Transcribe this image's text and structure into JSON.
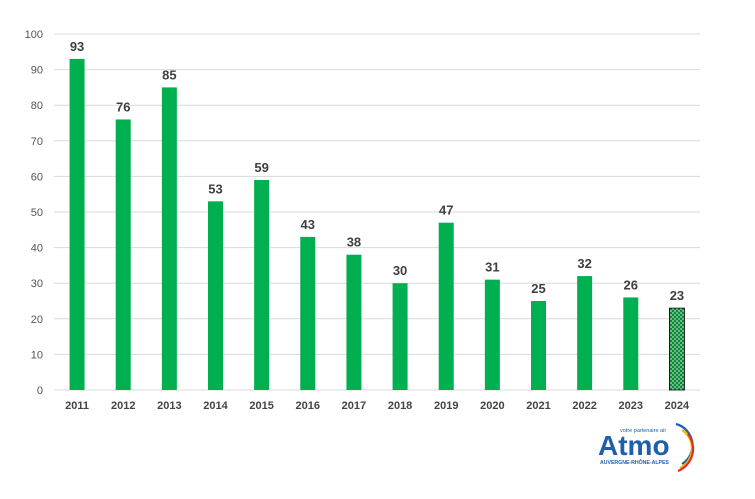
{
  "chart_data": {
    "type": "bar",
    "title": "",
    "xlabel": "",
    "ylabel": "",
    "ylim": [
      0,
      100
    ],
    "yticks": [
      0,
      10,
      20,
      30,
      40,
      50,
      60,
      70,
      80,
      90,
      100
    ],
    "grid": "horizontal",
    "categories": [
      "2011",
      "2012",
      "2013",
      "2014",
      "2015",
      "2016",
      "2017",
      "2018",
      "2019",
      "2020",
      "2021",
      "2022",
      "2023",
      "2024"
    ],
    "values": [
      93,
      76,
      85,
      53,
      59,
      43,
      38,
      30,
      47,
      31,
      25,
      32,
      26,
      23
    ],
    "highlight_last_hatched": true
  },
  "colors": {
    "bar": "#00b050",
    "grid": "#d9d9d9",
    "hatch_bg": "#0a8a3a",
    "hatch_dot": "#ffffff",
    "logo_blue": "#1f5fa8",
    "logo_yellow": "#f2b705",
    "logo_red": "#e02b2b"
  },
  "logo": {
    "tagline": "votre partenaire air",
    "name": "Atmo",
    "region": "AUVERGNE-RHÔNE-ALPES"
  }
}
